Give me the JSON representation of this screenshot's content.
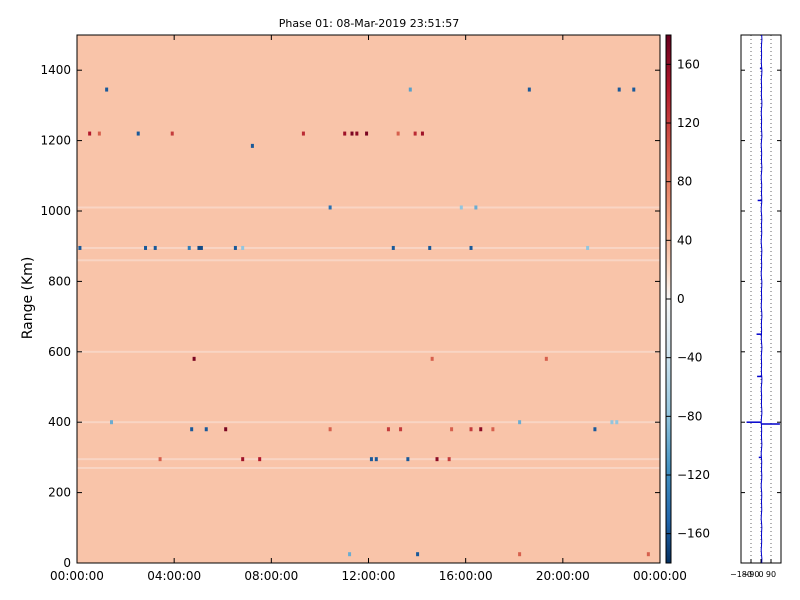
{
  "chart_data": [
    {
      "type": "heatmap",
      "title": "Phase 01: 08-Mar-2019 23:51:57",
      "xlabel": "",
      "ylabel": "Range (Km)",
      "x_tick_labels": [
        "00:00:00",
        "04:00:00",
        "08:00:00",
        "12:00:00",
        "16:00:00",
        "20:00:00",
        "00:00:00"
      ],
      "x_tick_hours": [
        0,
        4,
        8,
        12,
        16,
        20,
        24
      ],
      "xlim_hours": [
        0,
        24
      ],
      "y_ticks": [
        0,
        200,
        400,
        600,
        800,
        1000,
        1200,
        1400
      ],
      "ylim": [
        0,
        1500
      ],
      "background_value": 40,
      "speckles": [
        {
          "t": 1.2,
          "r": 1345,
          "v": -150
        },
        {
          "t": 13.7,
          "r": 1345,
          "v": -90
        },
        {
          "t": 18.6,
          "r": 1345,
          "v": -150
        },
        {
          "t": 22.3,
          "r": 1345,
          "v": -150
        },
        {
          "t": 22.9,
          "r": 1345,
          "v": -150
        },
        {
          "t": 0.5,
          "r": 1220,
          "v": 140
        },
        {
          "t": 0.9,
          "r": 1220,
          "v": 100
        },
        {
          "t": 2.5,
          "r": 1220,
          "v": -150
        },
        {
          "t": 3.9,
          "r": 1220,
          "v": 120
        },
        {
          "t": 9.3,
          "r": 1220,
          "v": 130
        },
        {
          "t": 11.0,
          "r": 1220,
          "v": 150
        },
        {
          "t": 11.3,
          "r": 1220,
          "v": 170
        },
        {
          "t": 11.5,
          "r": 1220,
          "v": 160
        },
        {
          "t": 11.9,
          "r": 1220,
          "v": 170
        },
        {
          "t": 13.2,
          "r": 1220,
          "v": 100
        },
        {
          "t": 13.9,
          "r": 1220,
          "v": 130
        },
        {
          "t": 14.2,
          "r": 1220,
          "v": 150
        },
        {
          "t": 7.2,
          "r": 1185,
          "v": -150
        },
        {
          "t": 10.4,
          "r": 1010,
          "v": -130
        },
        {
          "t": 15.8,
          "r": 1010,
          "v": -60
        },
        {
          "t": 16.4,
          "r": 1010,
          "v": -80
        },
        {
          "t": 0.1,
          "r": 895,
          "v": -150
        },
        {
          "t": 2.8,
          "r": 895,
          "v": -150
        },
        {
          "t": 3.2,
          "r": 895,
          "v": -150
        },
        {
          "t": 4.6,
          "r": 895,
          "v": -120
        },
        {
          "t": 5.0,
          "r": 895,
          "v": -160
        },
        {
          "t": 5.1,
          "r": 895,
          "v": -160
        },
        {
          "t": 6.5,
          "r": 895,
          "v": -150
        },
        {
          "t": 6.8,
          "r": 895,
          "v": -60
        },
        {
          "t": 13.0,
          "r": 895,
          "v": -150
        },
        {
          "t": 14.5,
          "r": 895,
          "v": -150
        },
        {
          "t": 16.2,
          "r": 895,
          "v": -150
        },
        {
          "t": 21.0,
          "r": 895,
          "v": -60
        },
        {
          "t": 4.8,
          "r": 580,
          "v": 170
        },
        {
          "t": 14.6,
          "r": 580,
          "v": 100
        },
        {
          "t": 19.3,
          "r": 580,
          "v": 100
        },
        {
          "t": 1.4,
          "r": 400,
          "v": -80
        },
        {
          "t": 18.2,
          "r": 400,
          "v": -80
        },
        {
          "t": 22.0,
          "r": 400,
          "v": -60
        },
        {
          "t": 22.2,
          "r": 400,
          "v": -60
        },
        {
          "t": 4.7,
          "r": 380,
          "v": -150
        },
        {
          "t": 5.3,
          "r": 380,
          "v": -150
        },
        {
          "t": 6.1,
          "r": 380,
          "v": 170
        },
        {
          "t": 10.4,
          "r": 380,
          "v": 100
        },
        {
          "t": 12.8,
          "r": 380,
          "v": 120
        },
        {
          "t": 13.3,
          "r": 380,
          "v": 120
        },
        {
          "t": 15.4,
          "r": 380,
          "v": 100
        },
        {
          "t": 16.2,
          "r": 380,
          "v": 120
        },
        {
          "t": 16.6,
          "r": 380,
          "v": 160
        },
        {
          "t": 17.1,
          "r": 380,
          "v": 100
        },
        {
          "t": 21.3,
          "r": 380,
          "v": -150
        },
        {
          "t": 3.4,
          "r": 295,
          "v": 100
        },
        {
          "t": 6.8,
          "r": 295,
          "v": 150
        },
        {
          "t": 7.5,
          "r": 295,
          "v": 140
        },
        {
          "t": 12.1,
          "r": 295,
          "v": -150
        },
        {
          "t": 12.3,
          "r": 295,
          "v": -150
        },
        {
          "t": 13.6,
          "r": 295,
          "v": -150
        },
        {
          "t": 14.8,
          "r": 295,
          "v": 160
        },
        {
          "t": 15.3,
          "r": 295,
          "v": 120
        },
        {
          "t": 11.2,
          "r": 25,
          "v": -80
        },
        {
          "t": 14.0,
          "r": 25,
          "v": -150
        },
        {
          "t": 18.2,
          "r": 25,
          "v": 100
        },
        {
          "t": 23.5,
          "r": 25,
          "v": 100
        }
      ]
    },
    {
      "type": "colorbar",
      "ticks": [
        160,
        120,
        80,
        40,
        0,
        -40,
        -80,
        -120,
        -160
      ],
      "range": [
        -180,
        180
      ]
    },
    {
      "type": "line",
      "x_ticks": [
        -180,
        -90,
        0,
        90
      ],
      "x_tick_labels": [
        "−180",
        "−90",
        "0",
        "90"
      ],
      "xlim": [
        -180,
        180
      ],
      "ylim": [
        0,
        1500
      ],
      "baseline_x": 5,
      "spikes": [
        {
          "range": 1405,
          "value": -10
        },
        {
          "range": 1030,
          "value": -30
        },
        {
          "range": 650,
          "value": -40
        },
        {
          "range": 530,
          "value": -35
        },
        {
          "range": 400,
          "value": -130
        },
        {
          "range": 395,
          "value": 170
        },
        {
          "range": 300,
          "value": -20
        }
      ]
    }
  ]
}
